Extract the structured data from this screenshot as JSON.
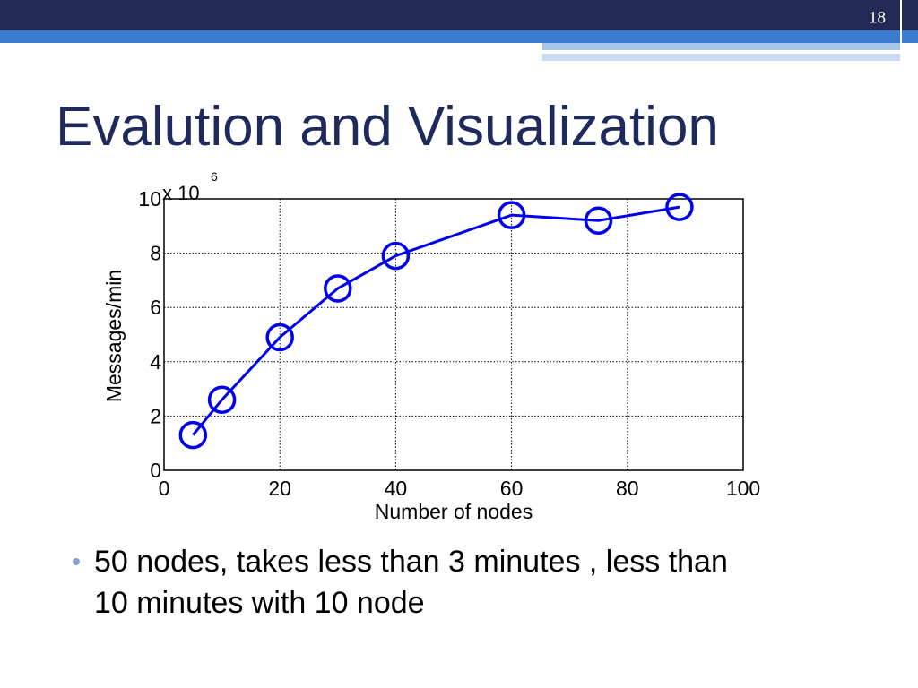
{
  "slide_number": "18",
  "title": "Evalution and Visualization",
  "bullets": [
    "50 nodes, takes less than 3 minutes , less than",
    "10 minutes with 10 node"
  ],
  "chart_data": {
    "type": "line",
    "x": [
      5,
      10,
      20,
      30,
      40,
      60,
      75,
      89
    ],
    "values": [
      1.3,
      2.6,
      4.9,
      6.7,
      7.9,
      9.4,
      9.2,
      9.7
    ],
    "color": "#0000ee",
    "xlabel": "Number of nodes",
    "ylabel": "Messages/min",
    "axis_multiplier": {
      "base": "x 10",
      "exponent": "6"
    },
    "xlim": [
      0,
      100
    ],
    "xticks": [
      0,
      20,
      40,
      60,
      80,
      100
    ],
    "ylim": [
      0,
      10
    ],
    "yticks": [
      0,
      2,
      4,
      6,
      8,
      10
    ],
    "grid": true,
    "marker": "circle"
  }
}
